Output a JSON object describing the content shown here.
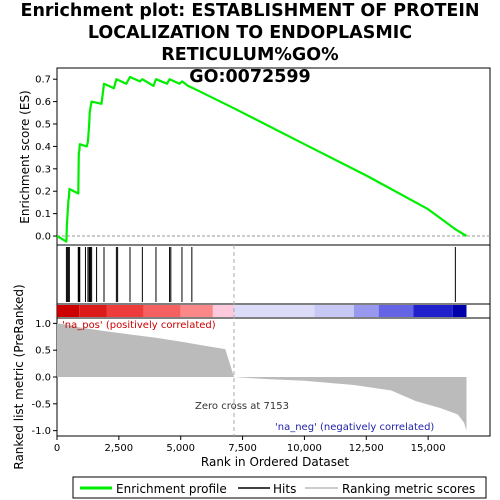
{
  "title_lines": [
    "Enrichment plot: ESTABLISHMENT OF PROTEIN",
    "LOCALIZATION TO ENDOPLASMIC RETICULUM%GO%",
    "GO:0072599"
  ],
  "chart_data": {
    "type": "line",
    "es_panel": {
      "ylabel": "Enrichment score (ES)",
      "ylim": [
        -0.04,
        0.75
      ],
      "yticks": [
        0.0,
        0.1,
        0.2,
        0.3,
        0.4,
        0.5,
        0.6,
        0.7
      ],
      "ytick_labels": [
        "0.0",
        "0.1",
        "0.2",
        "0.3",
        "0.4",
        "0.5",
        "0.6",
        "0.7"
      ],
      "line_color": "#00ee00",
      "es_points": [
        [
          0,
          0.0
        ],
        [
          380,
          -0.025
        ],
        [
          400,
          0.05
        ],
        [
          430,
          0.1
        ],
        [
          460,
          0.16
        ],
        [
          480,
          0.17
        ],
        [
          500,
          0.21
        ],
        [
          860,
          0.19
        ],
        [
          880,
          0.37
        ],
        [
          900,
          0.38
        ],
        [
          920,
          0.41
        ],
        [
          1200,
          0.4
        ],
        [
          1250,
          0.42
        ],
        [
          1300,
          0.5
        ],
        [
          1320,
          0.55
        ],
        [
          1360,
          0.58
        ],
        [
          1400,
          0.6
        ],
        [
          1800,
          0.59
        ],
        [
          1900,
          0.68
        ],
        [
          2300,
          0.66
        ],
        [
          2400,
          0.7
        ],
        [
          2800,
          0.68
        ],
        [
          2950,
          0.71
        ],
        [
          3350,
          0.69
        ],
        [
          3450,
          0.7
        ],
        [
          3900,
          0.67
        ],
        [
          4000,
          0.7
        ],
        [
          4450,
          0.68
        ],
        [
          4550,
          0.7
        ],
        [
          4950,
          0.68
        ],
        [
          5050,
          0.69
        ],
        [
          5300,
          0.67
        ],
        [
          5500,
          0.66
        ],
        [
          7153,
          0.57
        ],
        [
          10000,
          0.41
        ],
        [
          12500,
          0.27
        ],
        [
          15000,
          0.12
        ],
        [
          16100,
          0.03
        ],
        [
          16550,
          0.0
        ]
      ]
    },
    "hits": [
      380,
      420,
      460,
      500,
      860,
      890,
      920,
      1150,
      1250,
      1300,
      1330,
      1360,
      1400,
      1600,
      1900,
      2400,
      2450,
      2950,
      3450,
      4000,
      4550,
      4600,
      5050,
      5450,
      16100
    ],
    "metric_panel": {
      "ylabel": "Ranked list metric (PreRanked)",
      "ylim": [
        -1.1,
        1.1
      ],
      "yticks": [
        -1.0,
        -0.5,
        0.0,
        0.5,
        1.0
      ],
      "ytick_labels": [
        "-1.0",
        "-0.5",
        "0.0",
        "0.5",
        "1.0"
      ],
      "metric_points": [
        [
          0,
          1.0
        ],
        [
          300,
          0.98
        ],
        [
          1000,
          0.92
        ],
        [
          2000,
          0.85
        ],
        [
          3000,
          0.79
        ],
        [
          4000,
          0.73
        ],
        [
          5000,
          0.66
        ],
        [
          6000,
          0.58
        ],
        [
          6800,
          0.52
        ],
        [
          7153,
          0.0
        ],
        [
          8500,
          -0.04
        ],
        [
          10000,
          -0.07
        ],
        [
          12000,
          -0.15
        ],
        [
          13500,
          -0.25
        ],
        [
          14500,
          -0.45
        ],
        [
          15500,
          -0.58
        ],
        [
          16200,
          -0.7
        ],
        [
          16450,
          -0.85
        ],
        [
          16550,
          -1.0
        ]
      ]
    },
    "xlabel": "Rank in Ordered Dataset",
    "xlim": [
      0,
      17500
    ],
    "xticks": [
      0,
      2500,
      5000,
      7500,
      10000,
      12500,
      15000
    ],
    "xtick_labels": [
      "0",
      "2,500",
      "5,000",
      "7,500",
      "10,000",
      "12,500",
      "15,000"
    ],
    "zero_cross": 7153,
    "zero_cross_label": "Zero cross at 7153",
    "pos_label": "'na_pos' (positively correlated)",
    "neg_label": "'na_neg' (negatively correlated)",
    "colorbar": {
      "segments": [
        {
          "end": 900,
          "color": "#cc0000"
        },
        {
          "end": 2000,
          "color": "#dd1a1a"
        },
        {
          "end": 3500,
          "color": "#ee3b3b"
        },
        {
          "end": 5000,
          "color": "#f56060"
        },
        {
          "end": 6300,
          "color": "#fa8888"
        },
        {
          "end": 7153,
          "color": "#fdc9dd"
        },
        {
          "end": 10400,
          "color": "#dcdcf8"
        },
        {
          "end": 12000,
          "color": "#c8c8f4"
        },
        {
          "end": 13000,
          "color": "#9898ee"
        },
        {
          "end": 14400,
          "color": "#6464e4"
        },
        {
          "end": 16000,
          "color": "#2020cc"
        },
        {
          "end": 16550,
          "color": "#0000aa"
        }
      ]
    },
    "legend": {
      "position": "bottom",
      "items": [
        {
          "label": "Enrichment profile",
          "color": "#00ee00"
        },
        {
          "label": "Hits",
          "color": "#000000"
        },
        {
          "label": "Ranking metric scores",
          "color": "#bbbbbb"
        }
      ]
    }
  }
}
